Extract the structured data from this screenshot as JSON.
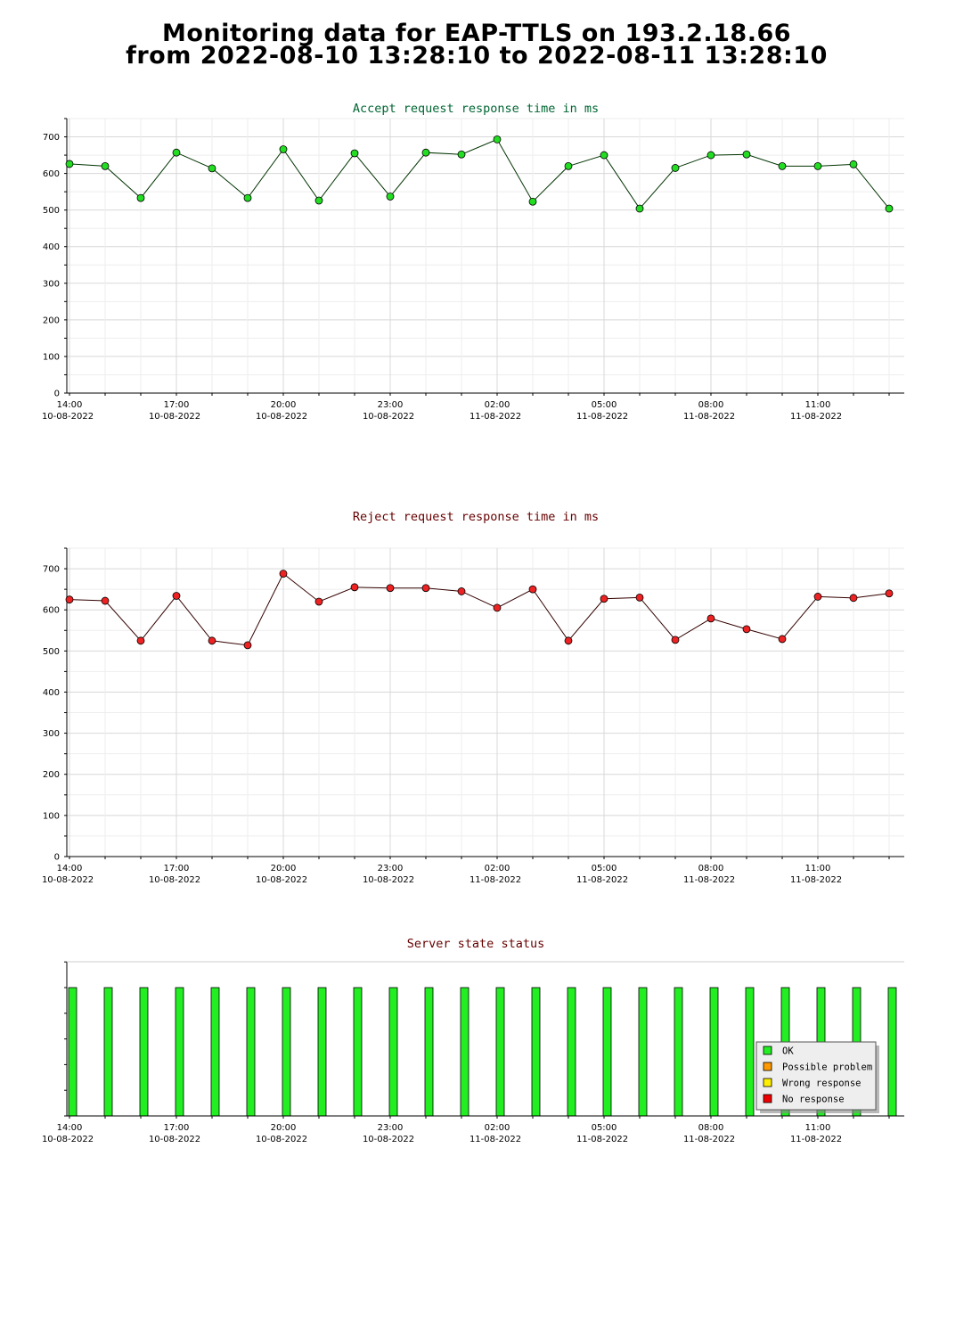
{
  "header": {
    "line1": "Monitoring data for EAP-TTLS on 193.2.18.66",
    "line2": "from 2022-08-10 13:28:10 to 2022-08-11 13:28:10"
  },
  "colors": {
    "accept_title": "#006633",
    "reject_title": "#660000",
    "status_title": "#660000",
    "accept_marker": "#22dd22",
    "reject_marker": "#ee2222",
    "ok": "#22ee22",
    "possible_problem": "#ff9900",
    "wrong_response": "#ffee00",
    "no_response": "#ee0000",
    "grid": "#dddddd"
  },
  "x_ticks": [
    {
      "time": "14:00",
      "date": "10-08-2022"
    },
    {
      "time": "17:00",
      "date": "10-08-2022"
    },
    {
      "time": "20:00",
      "date": "10-08-2022"
    },
    {
      "time": "23:00",
      "date": "10-08-2022"
    },
    {
      "time": "02:00",
      "date": "11-08-2022"
    },
    {
      "time": "05:00",
      "date": "11-08-2022"
    },
    {
      "time": "08:00",
      "date": "11-08-2022"
    },
    {
      "time": "11:00",
      "date": "11-08-2022"
    }
  ],
  "chart_data": [
    {
      "type": "line",
      "title": "Accept request response time in ms",
      "x": [
        "2022-08-10 14:00",
        "2022-08-10 15:00",
        "2022-08-10 16:00",
        "2022-08-10 17:00",
        "2022-08-10 18:00",
        "2022-08-10 19:00",
        "2022-08-10 20:00",
        "2022-08-10 21:00",
        "2022-08-10 22:00",
        "2022-08-10 23:00",
        "2022-08-11 00:00",
        "2022-08-11 01:00",
        "2022-08-11 02:00",
        "2022-08-11 03:00",
        "2022-08-11 04:00",
        "2022-08-11 05:00",
        "2022-08-11 06:00",
        "2022-08-11 07:00",
        "2022-08-11 08:00",
        "2022-08-11 09:00",
        "2022-08-11 10:00",
        "2022-08-11 11:00",
        "2022-08-11 12:00",
        "2022-08-11 13:00"
      ],
      "values": [
        626,
        620,
        533,
        657,
        614,
        533,
        666,
        526,
        655,
        537,
        657,
        652,
        693,
        523,
        620,
        650,
        504,
        615,
        650,
        652,
        620,
        620,
        625,
        504
      ],
      "y_ticks": [
        0,
        100,
        200,
        300,
        400,
        500,
        600,
        700
      ],
      "ylim": [
        0,
        750
      ],
      "grid": true
    },
    {
      "type": "line",
      "title": "Reject request response time in ms",
      "x": [
        "2022-08-10 14:00",
        "2022-08-10 15:00",
        "2022-08-10 16:00",
        "2022-08-10 17:00",
        "2022-08-10 18:00",
        "2022-08-10 19:00",
        "2022-08-10 20:00",
        "2022-08-10 21:00",
        "2022-08-10 22:00",
        "2022-08-10 23:00",
        "2022-08-11 00:00",
        "2022-08-11 01:00",
        "2022-08-11 02:00",
        "2022-08-11 03:00",
        "2022-08-11 04:00",
        "2022-08-11 05:00",
        "2022-08-11 06:00",
        "2022-08-11 07:00",
        "2022-08-11 08:00",
        "2022-08-11 09:00",
        "2022-08-11 10:00",
        "2022-08-11 11:00",
        "2022-08-11 12:00",
        "2022-08-11 13:00"
      ],
      "values": [
        625,
        622,
        525,
        634,
        525,
        514,
        688,
        620,
        655,
        653,
        653,
        645,
        605,
        650,
        525,
        627,
        630,
        527,
        579,
        553,
        529,
        632,
        629,
        640
      ],
      "y_ticks": [
        0,
        100,
        200,
        300,
        400,
        500,
        600,
        700
      ],
      "ylim": [
        0,
        750
      ],
      "grid": true
    },
    {
      "type": "bar",
      "title": "Server state status",
      "x": [
        "2022-08-10 14:00",
        "2022-08-10 15:00",
        "2022-08-10 16:00",
        "2022-08-10 17:00",
        "2022-08-10 18:00",
        "2022-08-10 19:00",
        "2022-08-10 20:00",
        "2022-08-10 21:00",
        "2022-08-10 22:00",
        "2022-08-10 23:00",
        "2022-08-11 00:00",
        "2022-08-11 01:00",
        "2022-08-11 02:00",
        "2022-08-11 03:00",
        "2022-08-11 04:00",
        "2022-08-11 05:00",
        "2022-08-11 06:00",
        "2022-08-11 07:00",
        "2022-08-11 08:00",
        "2022-08-11 09:00",
        "2022-08-11 10:00",
        "2022-08-11 11:00",
        "2022-08-11 12:00",
        "2022-08-11 13:00"
      ],
      "states": [
        "OK",
        "OK",
        "OK",
        "OK",
        "OK",
        "OK",
        "OK",
        "OK",
        "OK",
        "OK",
        "OK",
        "OK",
        "OK",
        "OK",
        "OK",
        "OK",
        "OK",
        "OK",
        "OK",
        "OK",
        "OK",
        "OK",
        "OK",
        "OK"
      ],
      "legend": [
        {
          "label": "OK",
          "color_key": "ok"
        },
        {
          "label": "Possible problem",
          "color_key": "possible_problem"
        },
        {
          "label": "Wrong response",
          "color_key": "wrong_response"
        },
        {
          "label": "No response",
          "color_key": "no_response"
        }
      ],
      "legend_position": "bottom-right",
      "grid": false
    }
  ]
}
